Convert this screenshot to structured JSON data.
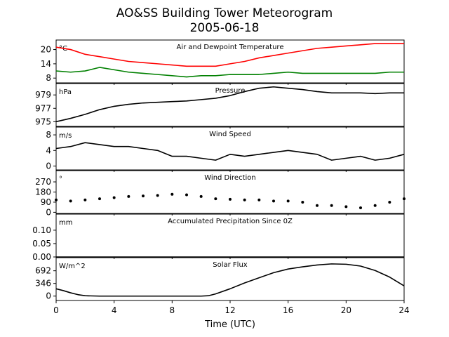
{
  "figure": {
    "title": "AO&SS Building Tower Meteorogram",
    "subtitle": "2005-06-18",
    "xlabel": "Time (UTC)"
  },
  "chart_data": [
    {
      "type": "line",
      "title": "Air and Dewpoint Temperature",
      "unit": "°C",
      "xlim": [
        0,
        24
      ],
      "ylim": [
        6,
        24
      ],
      "yticks": [
        8,
        14,
        20
      ],
      "x": [
        0,
        1,
        2,
        3,
        4,
        5,
        6,
        7,
        8,
        9,
        10,
        11,
        12,
        13,
        14,
        15,
        16,
        17,
        18,
        19,
        20,
        21,
        22,
        23,
        24
      ],
      "series": [
        {
          "color": "#ff0000",
          "values": [
            21,
            20,
            18,
            17,
            16,
            15,
            14.5,
            14,
            13.5,
            13,
            13,
            13,
            14,
            15,
            16.5,
            17.5,
            18.5,
            19.5,
            20.5,
            21,
            21.5,
            22,
            22.5,
            22.5,
            22.5
          ]
        },
        {
          "color": "#008000",
          "values": [
            11,
            10.5,
            11,
            12.5,
            11.5,
            10.5,
            10,
            9.5,
            9,
            8.5,
            9,
            9,
            9.5,
            9.5,
            9.5,
            10,
            10.5,
            10,
            10,
            10,
            10,
            10,
            10,
            10.5,
            10.5
          ]
        }
      ]
    },
    {
      "type": "line",
      "title": "Pressure",
      "unit": "hPa",
      "xlim": [
        0,
        24
      ],
      "ylim": [
        974.3,
        980.7
      ],
      "yticks": [
        975,
        977,
        979
      ],
      "x": [
        0,
        1,
        2,
        3,
        4,
        5,
        6,
        7,
        8,
        9,
        10,
        11,
        12,
        13,
        14,
        15,
        16,
        17,
        18,
        19,
        20,
        21,
        22,
        23,
        24
      ],
      "series": [
        {
          "color": "#000000",
          "values": [
            975,
            975.5,
            976.1,
            976.8,
            977.3,
            977.6,
            977.8,
            977.9,
            978,
            978.1,
            978.3,
            978.5,
            978.9,
            979.5,
            980,
            980.2,
            980,
            979.8,
            979.5,
            979.3,
            979.3,
            979.3,
            979.2,
            979.3,
            979.3
          ]
        }
      ]
    },
    {
      "type": "line",
      "title": "Wind Speed",
      "unit": "m/s",
      "xlim": [
        0,
        24
      ],
      "ylim": [
        -1,
        10
      ],
      "yticks": [
        0,
        4,
        8
      ],
      "x": [
        0,
        1,
        2,
        3,
        4,
        5,
        6,
        7,
        8,
        9,
        10,
        11,
        12,
        13,
        14,
        15,
        16,
        17,
        18,
        19,
        20,
        21,
        22,
        23,
        24
      ],
      "series": [
        {
          "color": "#000000",
          "values": [
            4.5,
            5,
            6,
            5.5,
            5,
            5,
            4.5,
            4,
            2.5,
            2.5,
            2,
            1.5,
            3,
            2.5,
            3,
            3.5,
            4,
            3.5,
            3,
            1.5,
            2,
            2.5,
            1.5,
            2,
            3
          ]
        }
      ]
    },
    {
      "type": "scatter",
      "title": "Wind Direction",
      "unit": "°",
      "xlim": [
        0,
        24
      ],
      "ylim": [
        -10,
        370
      ],
      "yticks": [
        0,
        90,
        180,
        270
      ],
      "x": [
        0,
        1,
        2,
        3,
        4,
        5,
        6,
        7,
        8,
        9,
        10,
        11,
        12,
        13,
        14,
        15,
        16,
        17,
        18,
        19,
        20,
        21,
        22,
        23,
        24
      ],
      "series": [
        {
          "color": "#000000",
          "values": [
            110,
            100,
            110,
            120,
            130,
            140,
            145,
            150,
            160,
            155,
            140,
            120,
            115,
            110,
            110,
            100,
            100,
            90,
            60,
            60,
            50,
            40,
            60,
            90,
            120
          ]
        }
      ]
    },
    {
      "type": "line",
      "title": "Accumulated Precipitation Since 0Z",
      "unit": "mm",
      "xlim": [
        0,
        24
      ],
      "ylim": [
        0,
        0.16
      ],
      "yticks": [
        0.0,
        0.05,
        0.1
      ],
      "ytick_labels": [
        "0.00",
        "0.05",
        "0.10"
      ],
      "x": [
        0,
        24
      ],
      "series": [
        {
          "color": "#000000",
          "values": [
            0,
            0
          ]
        }
      ]
    },
    {
      "type": "line",
      "title": "Solar Flux",
      "unit": "W/m^2",
      "xlim": [
        0,
        24
      ],
      "ylim": [
        -120,
        1050
      ],
      "yticks": [
        0,
        346,
        692
      ],
      "x": [
        0,
        0.5,
        1,
        1.5,
        2,
        3,
        4,
        5,
        6,
        7,
        8,
        9,
        10,
        10.5,
        11,
        12,
        13,
        14,
        15,
        16,
        17,
        18,
        19,
        20,
        21,
        22,
        23,
        24
      ],
      "series": [
        {
          "color": "#000000",
          "values": [
            200,
            150,
            90,
            40,
            10,
            0,
            0,
            0,
            0,
            0,
            0,
            0,
            0,
            10,
            60,
            200,
            360,
            500,
            640,
            740,
            800,
            850,
            880,
            870,
            820,
            700,
            520,
            280
          ]
        }
      ]
    }
  ],
  "xaxis": {
    "ticks": [
      0,
      4,
      8,
      12,
      16,
      20,
      24
    ]
  }
}
